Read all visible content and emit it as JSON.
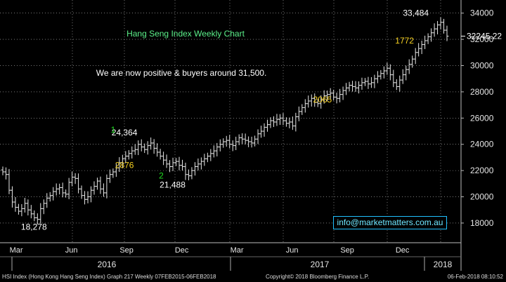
{
  "chart_data": {
    "type": "ohlc",
    "title": "Hang Seng Index Weekly Chart",
    "annotation": "We are now positive & buyers around 31,500.",
    "ylim": [
      16500,
      35000
    ],
    "yticks": [
      18000,
      20000,
      22000,
      24000,
      26000,
      28000,
      30000,
      32000,
      34000
    ],
    "last_price": "32245.22",
    "month_labels": [
      "Mar",
      "Jun",
      "Sep",
      "Dec",
      "Mar",
      "Jun",
      "Sep",
      "Dec"
    ],
    "year_labels": [
      "2016",
      "2017",
      "2018"
    ],
    "x_range_weeks": 158,
    "labels": [
      {
        "text": "18,278",
        "week": 11,
        "price": 18278,
        "color": "#ffffff",
        "role": "low"
      },
      {
        "text": "24,364",
        "week": 43,
        "price": 24364,
        "color": "#ffffff",
        "role": "high"
      },
      {
        "text": "1",
        "week": 39,
        "price": 24364,
        "color": "#22dd22",
        "role": "wave"
      },
      {
        "text": "2876",
        "week": 43,
        "price": 22400,
        "color": "#f5d020",
        "role": "range"
      },
      {
        "text": "2",
        "week": 56,
        "price": 21488,
        "color": "#22dd22",
        "role": "wave"
      },
      {
        "text": "21,488",
        "week": 60,
        "price": 21488,
        "color": "#ffffff",
        "role": "low"
      },
      {
        "text": "2065",
        "week": 113,
        "price": 27400,
        "color": "#f5d020",
        "role": "range"
      },
      {
        "text": "33,484",
        "week": 146,
        "price": 33484,
        "color": "#ffffff",
        "role": "high"
      },
      {
        "text": "1772",
        "week": 142,
        "price": 31900,
        "color": "#f5d020",
        "role": "range"
      }
    ],
    "weekly_close": [
      21900,
      21700,
      20500,
      19600,
      19200,
      18900,
      19100,
      19500,
      19000,
      18700,
      18400,
      18278,
      19100,
      19500,
      19900,
      20100,
      20400,
      20600,
      20700,
      20300,
      20200,
      21100,
      21500,
      21400,
      20600,
      20100,
      19800,
      20000,
      20500,
      20800,
      21200,
      20600,
      20300,
      21400,
      21700,
      21900,
      22200,
      22600,
      22900,
      23100,
      23300,
      23500,
      23600,
      24000,
      23800,
      23600,
      23900,
      24100,
      23700,
      23400,
      23100,
      22800,
      22500,
      22300,
      22600,
      22700,
      22400,
      22300,
      21700,
      21600,
      22000,
      22300,
      22500,
      22700,
      22900,
      23100,
      23300,
      23500,
      23800,
      24000,
      24200,
      24300,
      24000,
      23900,
      24200,
      24500,
      24400,
      24300,
      24200,
      24100,
      24400,
      24800,
      25000,
      25300,
      25500,
      25800,
      25700,
      25900,
      26000,
      25800,
      25600,
      25700,
      25400,
      26100,
      26500,
      26800,
      27100,
      27300,
      27500,
      27200,
      27100,
      27400,
      27700,
      27800,
      27900,
      27600,
      27500,
      27800,
      28100,
      28300,
      28500,
      28400,
      28300,
      28500,
      28700,
      28800,
      28600,
      28700,
      29000,
      29200,
      29400,
      29600,
      29800,
      29300,
      28700,
      28400,
      28900,
      29300,
      29700,
      30100,
      30500,
      31000,
      31300,
      31600,
      31900,
      32200,
      32500,
      32800,
      33100,
      33300,
      32700,
      32245
    ]
  },
  "footer": {
    "left": "HSI Index (Hong Kong Hang Seng Index) Graph 217  Weekly 07FEB2015-06FEB2018",
    "center": "Copyright© 2018 Bloomberg Finance L.P.",
    "right": "06-Feb-2018 08:10:52"
  },
  "contact": "info@marketmatters.com.au",
  "colors": {
    "bar": "#e8e8e8",
    "grid": "#ffffff",
    "title": "#5cf08a",
    "label_yellow": "#f5d020",
    "label_green": "#22dd22",
    "contact": "#6fe6ff"
  }
}
